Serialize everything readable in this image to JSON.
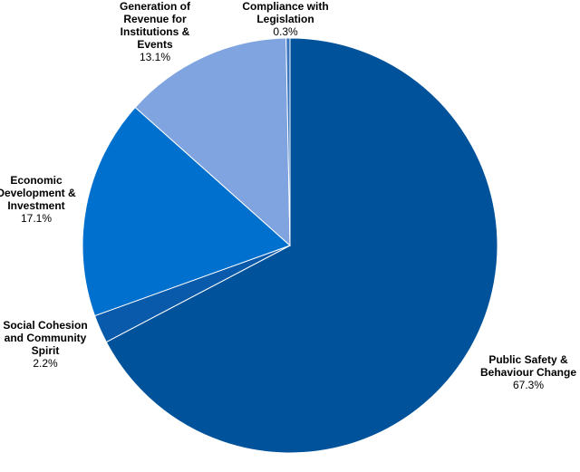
{
  "chart_data": {
    "type": "pie",
    "categories": [
      "Public Safety & Behaviour Change",
      "Social Cohesion and Community Spirit",
      "Economic Development & Investment",
      "Generation of Revenue for Institutions  & Events",
      "Compliance with Legislation"
    ],
    "values": [
      67.3,
      2.2,
      17.1,
      13.1,
      0.3
    ],
    "value_labels": [
      "67.3%",
      "2.2%",
      "17.1%",
      "13.1%",
      "0.3%"
    ],
    "colors": [
      "#00529b",
      "#0a5aab",
      "#0070cf",
      "#80a4df",
      "#3a75c0"
    ]
  }
}
